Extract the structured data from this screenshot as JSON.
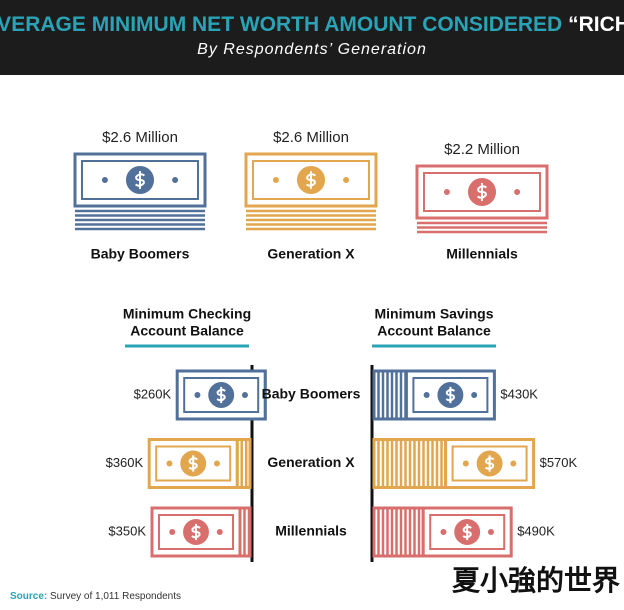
{
  "chart_data": [
    {
      "type": "bar",
      "title": "AVERAGE MINIMUM NET WORTH AMOUNT CONSIDERED",
      "title_emphasis": "“RICH”",
      "subtitle": "By Respondents’ Generation",
      "source_label": "Source:",
      "source": "Survey of 1,011 Respondents",
      "watermark": "夏小強的世界",
      "categories": [
        "Baby Boomers",
        "Generation X",
        "Millennials"
      ],
      "values": [
        2.6,
        2.6,
        2.2
      ],
      "value_labels": [
        "$2.6 Million",
        "$2.6 Million",
        "$2.2 Million"
      ],
      "colors": [
        "#51709a",
        "#e2a64f",
        "#d86f6c"
      ]
    },
    {
      "type": "hbar-left",
      "title": [
        "Minimum Checking",
        "Account Balance"
      ],
      "categories": [
        "Baby Boomers",
        "Generation X",
        "Millennials"
      ],
      "values": [
        260000,
        360000,
        350000
      ],
      "value_labels": [
        "$260K",
        "$360K",
        "$350K"
      ],
      "colors": [
        "#51709a",
        "#e2a64f",
        "#d86f6c"
      ]
    },
    {
      "type": "hbar-right",
      "title": [
        "Minimum Savings",
        "Account Balance"
      ],
      "values": [
        430000,
        570000,
        490000
      ],
      "value_labels": [
        "$430K",
        "$570K",
        "$490K"
      ],
      "colors": [
        "#51709a",
        "#e2a64f",
        "#d86f6c"
      ]
    }
  ]
}
